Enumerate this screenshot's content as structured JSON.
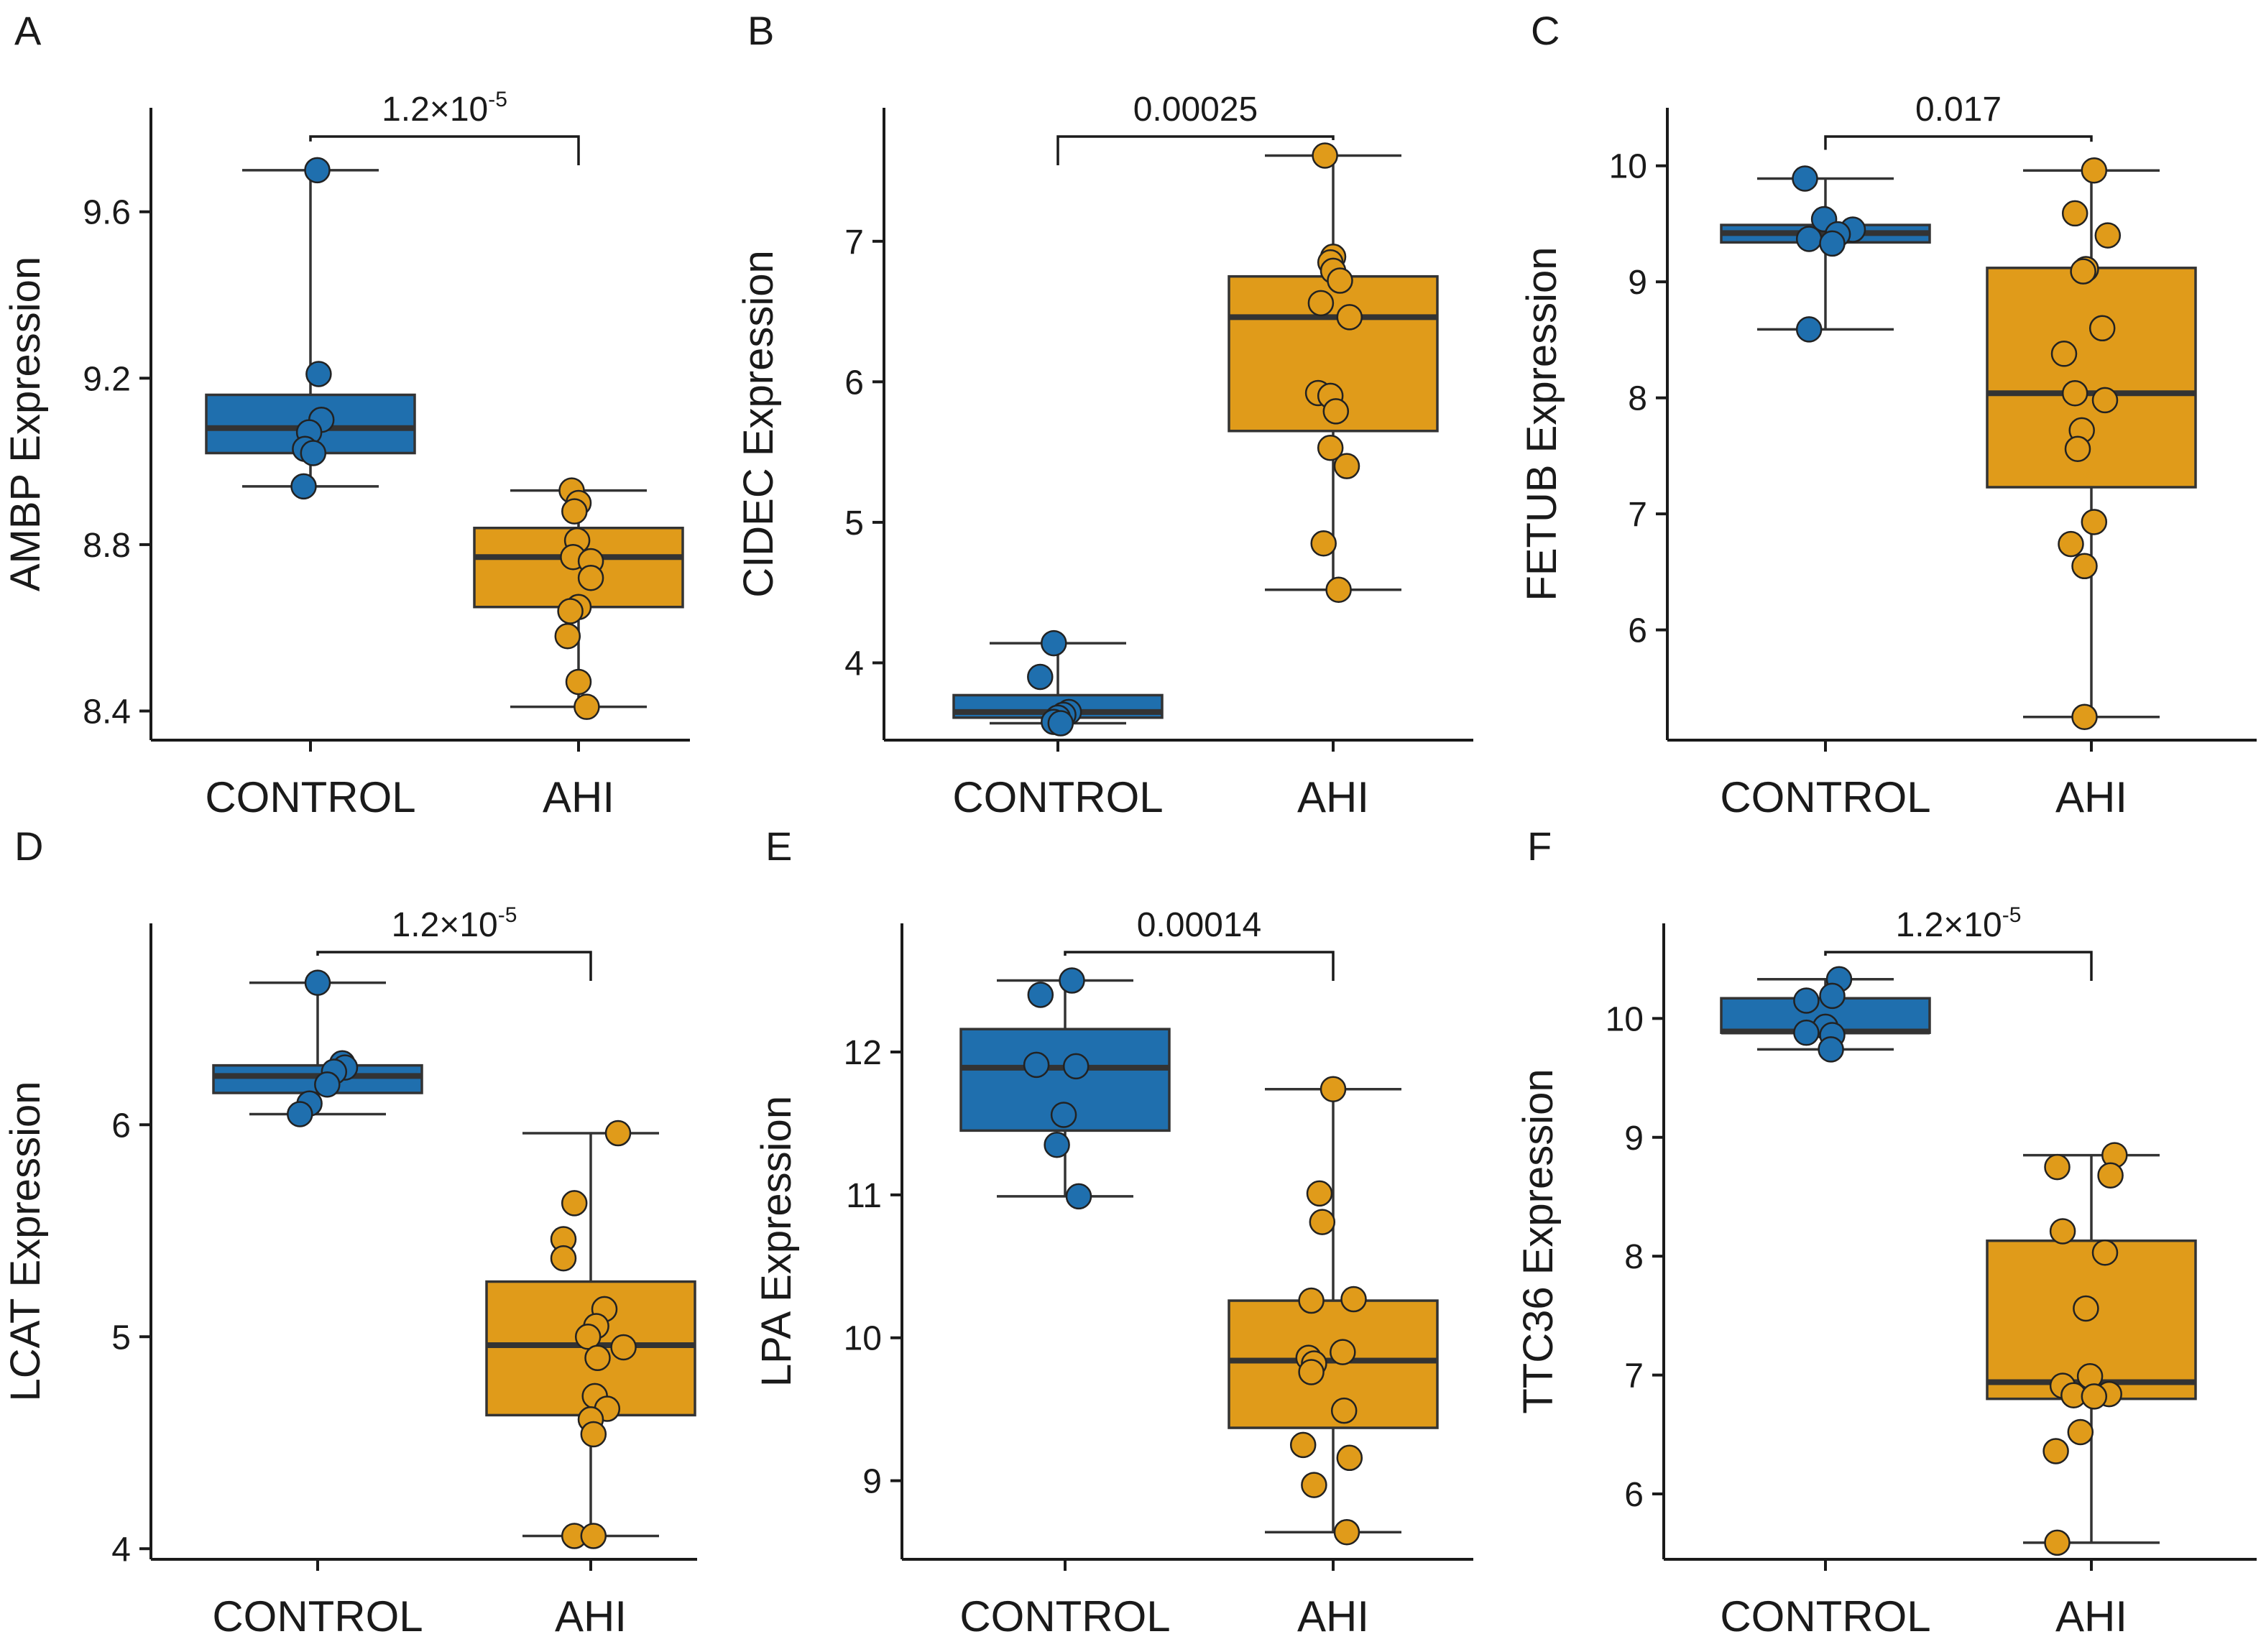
{
  "figure": {
    "colors": {
      "control": "#1f6fae",
      "ahi": "#e09b1a",
      "line": "#333333",
      "median": "#333333"
    }
  },
  "chart_data": [
    {
      "type": "box",
      "panel": "A",
      "ylabel": "AMBP Expression",
      "categories": [
        "CONTROL",
        "AHI"
      ],
      "ylim": [
        8.33,
        9.85
      ],
      "yticks": [
        8.4,
        8.8,
        9.2,
        9.6
      ],
      "ytick_labels": [
        "8.4",
        "8.8",
        "9.2",
        "9.6"
      ],
      "p_value": {
        "base": "1.2×10",
        "sup": "-5"
      },
      "series": [
        {
          "name": "CONTROL",
          "whisker_low": 8.94,
          "q1": 9.02,
          "median": 9.08,
          "q3": 9.16,
          "whisker_high": 9.7,
          "points": [
            9.7,
            9.21,
            9.1,
            9.07,
            9.03,
            9.02,
            8.94
          ],
          "jitter": [
            0.05,
            0.06,
            0.08,
            -0.01,
            -0.04,
            0.02,
            -0.05
          ]
        },
        {
          "name": "AHI",
          "whisker_low": 8.41,
          "q1": 8.65,
          "median": 8.77,
          "q3": 8.84,
          "whisker_high": 8.93,
          "points": [
            8.93,
            8.9,
            8.88,
            8.81,
            8.77,
            8.76,
            8.72,
            8.65,
            8.64,
            8.58,
            8.47,
            8.41
          ],
          "jitter": [
            -0.05,
            0.0,
            -0.03,
            -0.01,
            -0.04,
            0.09,
            0.09,
            0.0,
            -0.06,
            -0.08,
            0.0,
            0.06
          ]
        }
      ]
    },
    {
      "type": "box",
      "panel": "B",
      "ylabel": "CIDEC Expression",
      "categories": [
        "CONTROL",
        "AHI"
      ],
      "ylim": [
        3.45,
        7.95
      ],
      "yticks": [
        4,
        5,
        6,
        7
      ],
      "ytick_labels": [
        "4",
        "5",
        "6",
        "7"
      ],
      "p_value": {
        "text": "0.00025"
      },
      "series": [
        {
          "name": "CONTROL",
          "whisker_low": 3.57,
          "q1": 3.61,
          "median": 3.65,
          "q3": 3.77,
          "whisker_high": 4.14,
          "points": [
            4.14,
            3.9,
            3.65,
            3.63,
            3.61,
            3.58,
            3.57
          ],
          "jitter": [
            -0.03,
            -0.13,
            0.08,
            0.04,
            0.0,
            -0.03,
            0.02
          ]
        },
        {
          "name": "AHI",
          "whisker_low": 4.52,
          "q1": 5.65,
          "median": 6.46,
          "q3": 6.75,
          "whisker_high": 7.61,
          "points": [
            7.61,
            6.89,
            6.85,
            6.79,
            6.72,
            6.56,
            6.46,
            5.92,
            5.9,
            5.79,
            5.53,
            5.4,
            4.85,
            4.52
          ],
          "jitter": [
            -0.06,
            0.0,
            -0.02,
            0.0,
            0.05,
            -0.09,
            0.12,
            -0.11,
            -0.02,
            0.02,
            -0.02,
            0.1,
            -0.07,
            0.04
          ]
        }
      ]
    },
    {
      "type": "box",
      "panel": "C",
      "ylabel": "FETUB Expression",
      "categories": [
        "CONTROL",
        "AHI"
      ],
      "ylim": [
        5.05,
        10.5
      ],
      "yticks": [
        6,
        7,
        8,
        9,
        10
      ],
      "ytick_labels": [
        "6",
        "7",
        "8",
        "9",
        "10"
      ],
      "p_value": {
        "text": "0.017"
      },
      "series": [
        {
          "name": "CONTROL",
          "whisker_low": 8.59,
          "q1": 9.34,
          "median": 9.42,
          "q3": 9.49,
          "whisker_high": 9.89,
          "points": [
            9.89,
            9.54,
            9.45,
            9.41,
            9.37,
            9.33,
            8.59
          ],
          "jitter": [
            -0.15,
            -0.01,
            0.2,
            0.09,
            -0.12,
            0.05,
            -0.12
          ]
        },
        {
          "name": "AHI",
          "whisker_low": 5.25,
          "q1": 7.23,
          "median": 8.04,
          "q3": 9.12,
          "whisker_high": 9.96,
          "points": [
            9.96,
            9.59,
            9.4,
            9.11,
            9.09,
            8.6,
            8.38,
            8.04,
            7.98,
            7.72,
            7.56,
            6.93,
            6.74,
            6.55,
            5.25
          ],
          "jitter": [
            0.02,
            -0.12,
            0.12,
            -0.04,
            -0.06,
            0.08,
            -0.2,
            -0.12,
            0.1,
            -0.07,
            -0.1,
            0.02,
            -0.15,
            -0.05,
            -0.05
          ]
        }
      ]
    },
    {
      "type": "box",
      "panel": "D",
      "ylabel": "LCAT Expression",
      "categories": [
        "CONTROL",
        "AHI"
      ],
      "ylim": [
        3.95,
        6.95
      ],
      "yticks": [
        4,
        5,
        6
      ],
      "ytick_labels": [
        "4",
        "5",
        "6"
      ],
      "p_value": {
        "base": "1.2×10",
        "sup": "-5"
      },
      "series": [
        {
          "name": "CONTROL",
          "whisker_low": 6.05,
          "q1": 6.15,
          "median": 6.23,
          "q3": 6.28,
          "whisker_high": 6.67,
          "points": [
            6.67,
            6.29,
            6.27,
            6.25,
            6.19,
            6.1,
            6.05
          ],
          "jitter": [
            0.0,
            0.18,
            0.2,
            0.12,
            0.07,
            -0.06,
            -0.13
          ]
        },
        {
          "name": "AHI",
          "whisker_low": 4.06,
          "q1": 4.63,
          "median": 4.96,
          "q3": 5.26,
          "whisker_high": 5.96,
          "points": [
            5.96,
            5.63,
            5.46,
            5.37,
            5.13,
            5.05,
            5.0,
            4.95,
            4.9,
            4.72,
            4.66,
            4.61,
            4.54,
            4.06,
            4.06
          ],
          "jitter": [
            0.2,
            -0.12,
            -0.2,
            -0.2,
            0.1,
            0.04,
            -0.02,
            0.24,
            0.05,
            0.03,
            0.12,
            0.0,
            0.02,
            -0.12,
            0.02
          ]
        }
      ]
    },
    {
      "type": "box",
      "panel": "E",
      "ylabel": "LPA Expression",
      "categories": [
        "CONTROL",
        "AHI"
      ],
      "ylim": [
        8.45,
        12.9
      ],
      "yticks": [
        9,
        10,
        11,
        12
      ],
      "ytick_labels": [
        "9",
        "10",
        "11",
        "12"
      ],
      "p_value": {
        "text": "0.00014"
      },
      "series": [
        {
          "name": "CONTROL",
          "whisker_low": 10.99,
          "q1": 11.45,
          "median": 11.89,
          "q3": 12.16,
          "whisker_high": 12.5,
          "points": [
            12.5,
            12.4,
            11.91,
            11.9,
            11.56,
            11.35,
            10.99
          ],
          "jitter": [
            0.05,
            -0.18,
            -0.21,
            0.08,
            -0.01,
            -0.06,
            0.1
          ]
        },
        {
          "name": "AHI",
          "whisker_low": 8.64,
          "q1": 9.37,
          "median": 9.84,
          "q3": 10.26,
          "whisker_high": 11.74,
          "points": [
            11.74,
            11.01,
            10.81,
            10.27,
            10.26,
            9.9,
            9.86,
            9.82,
            9.76,
            9.49,
            9.25,
            9.16,
            8.97,
            8.64
          ],
          "jitter": [
            0.0,
            -0.1,
            -0.08,
            0.15,
            -0.16,
            0.07,
            -0.18,
            -0.14,
            -0.16,
            0.08,
            -0.22,
            0.12,
            -0.14,
            0.1
          ]
        }
      ]
    },
    {
      "type": "box",
      "panel": "F",
      "ylabel": "TTC36 Expression",
      "categories": [
        "CONTROL",
        "AHI"
      ],
      "ylim": [
        5.45,
        10.8
      ],
      "yticks": [
        6,
        7,
        8,
        9,
        10
      ],
      "ytick_labels": [
        "6",
        "7",
        "8",
        "9",
        "10"
      ],
      "p_value": {
        "base": "1.2×10",
        "sup": "-5"
      },
      "series": [
        {
          "name": "CONTROL",
          "whisker_low": 9.74,
          "q1": 9.88,
          "median": 9.89,
          "q3": 10.17,
          "whisker_high": 10.33,
          "points": [
            10.33,
            10.19,
            10.15,
            9.93,
            9.88,
            9.86,
            9.74
          ],
          "jitter": [
            0.1,
            0.05,
            -0.14,
            0.0,
            -0.14,
            0.05,
            0.04
          ]
        },
        {
          "name": "AHI",
          "whisker_low": 5.59,
          "q1": 6.8,
          "median": 6.94,
          "q3": 8.13,
          "whisker_high": 8.85,
          "points": [
            8.85,
            8.75,
            8.68,
            8.21,
            8.03,
            7.56,
            6.99,
            6.91,
            6.84,
            6.83,
            6.82,
            6.52,
            6.36,
            5.59
          ],
          "jitter": [
            0.17,
            -0.25,
            0.14,
            -0.21,
            0.1,
            -0.04,
            -0.01,
            -0.21,
            0.13,
            -0.13,
            0.02,
            -0.08,
            -0.26,
            -0.25
          ]
        }
      ]
    }
  ]
}
